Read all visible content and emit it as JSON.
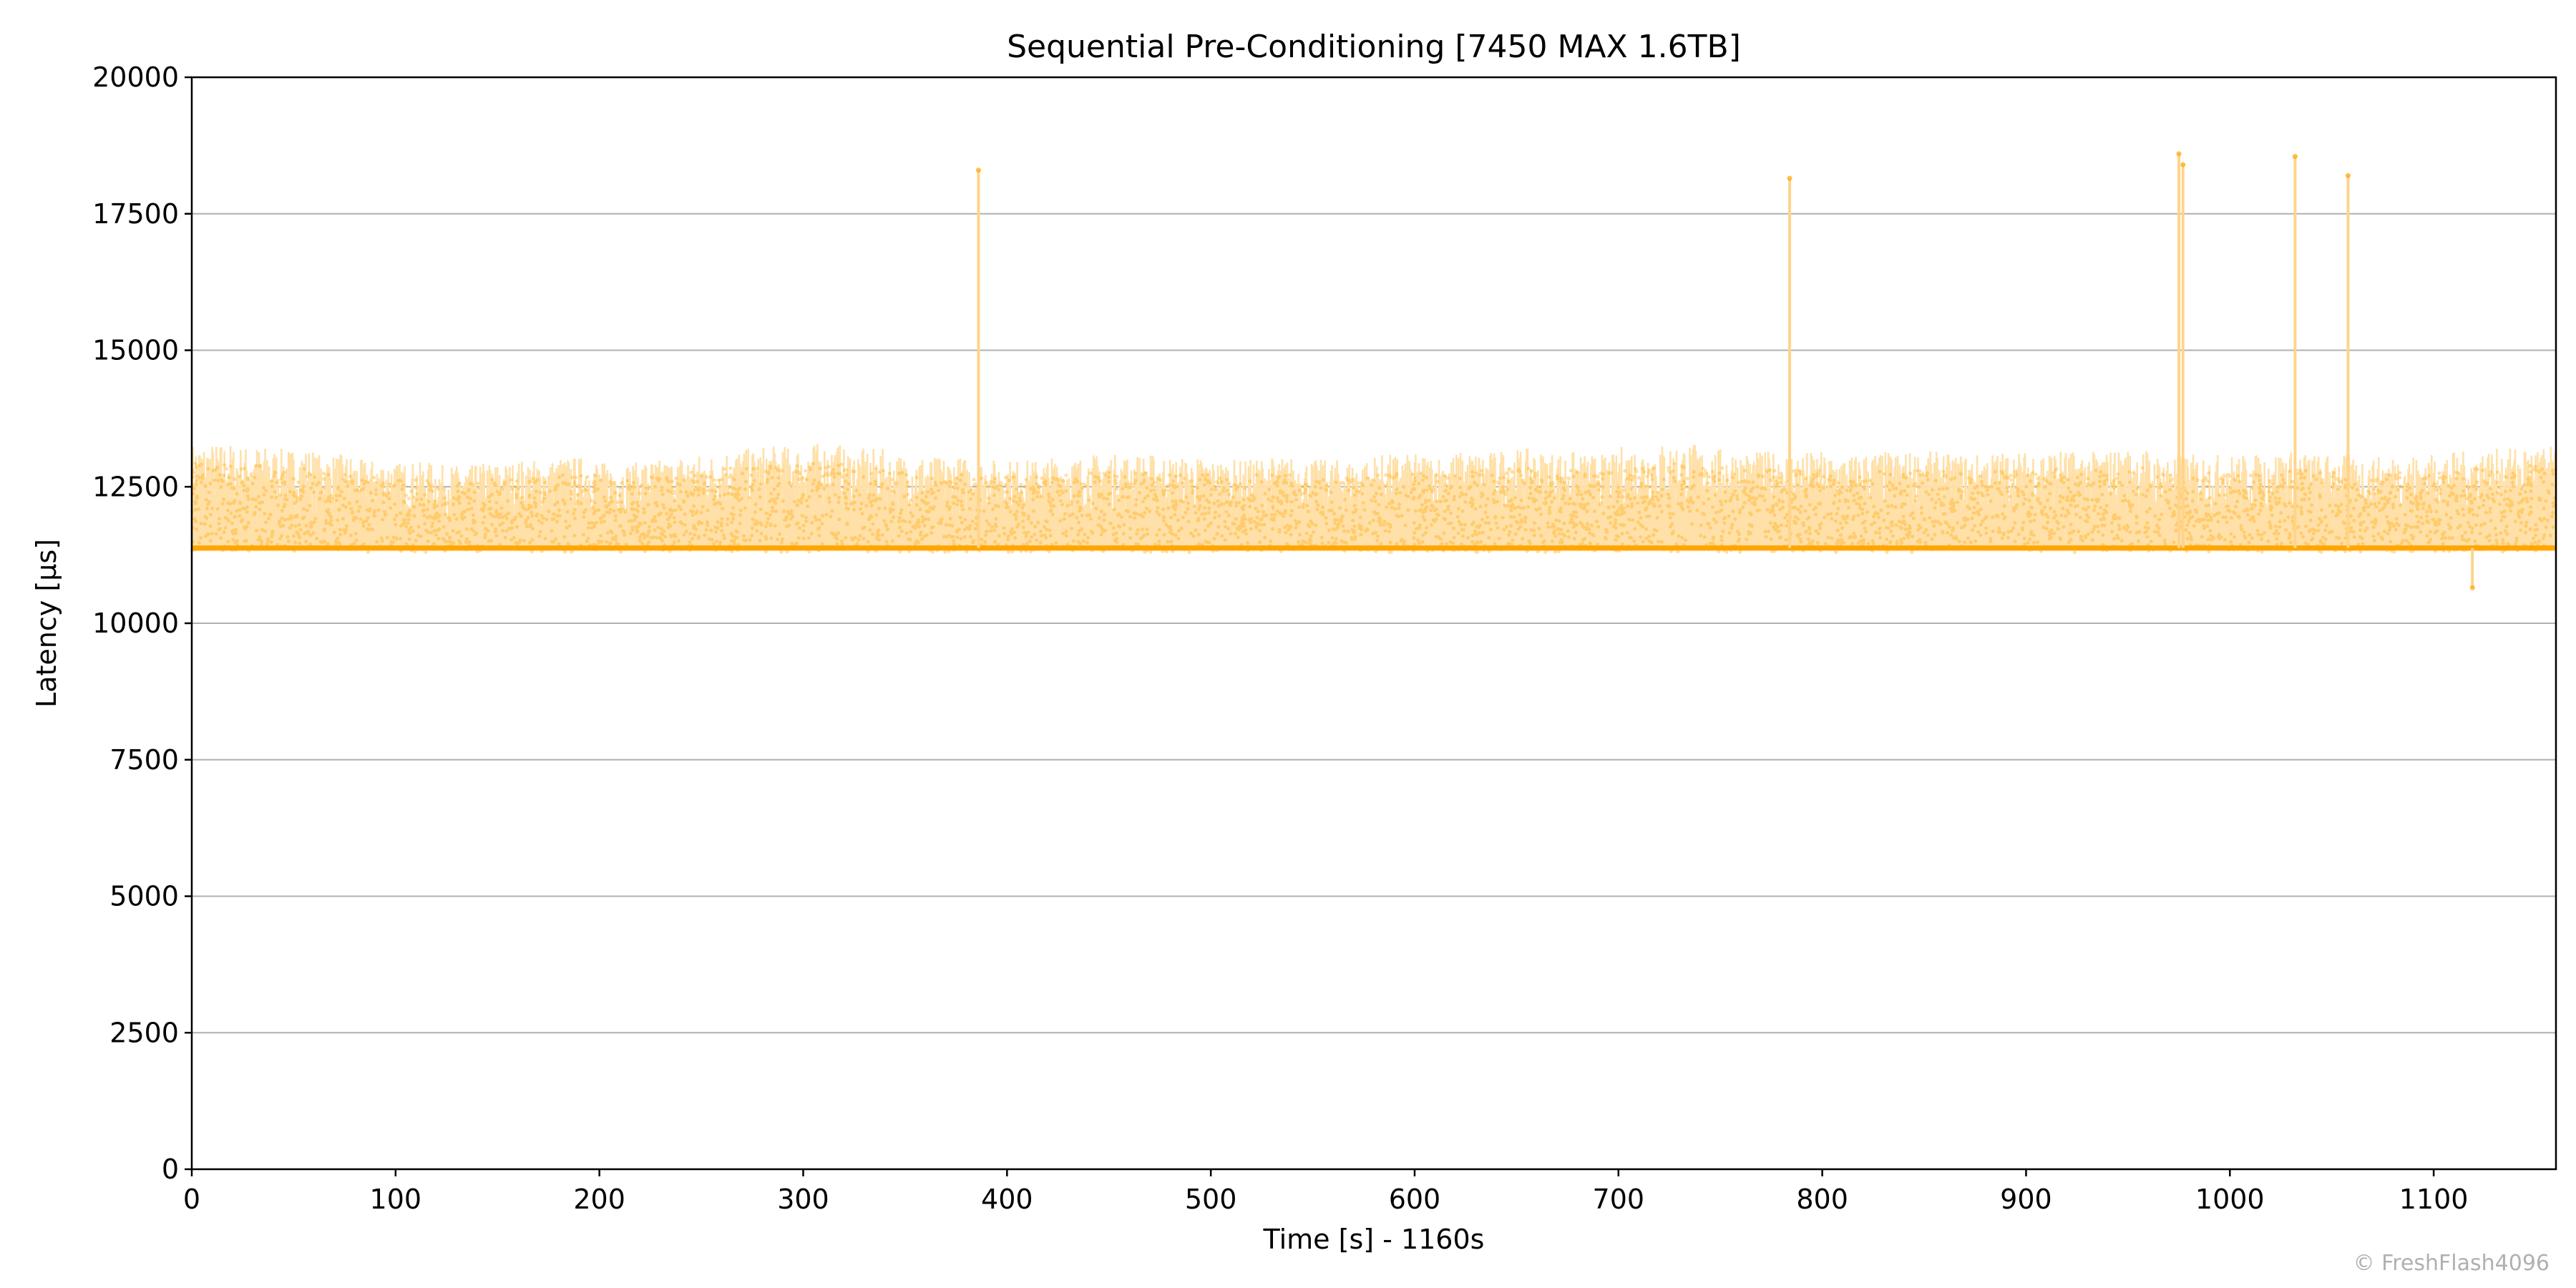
{
  "chart_data": {
    "type": "scatter",
    "title": "Sequential Pre-Conditioning [7450 MAX 1.6TB]",
    "xlabel": "Time [s] - 1160s",
    "ylabel": "Latency [µs]",
    "xlim": [
      0,
      1160
    ],
    "ylim": [
      0,
      20000
    ],
    "xticks": [
      0,
      100,
      200,
      300,
      400,
      500,
      600,
      700,
      800,
      900,
      1000,
      1100
    ],
    "yticks": [
      0,
      2500,
      5000,
      7500,
      10000,
      12500,
      15000,
      17500,
      20000
    ],
    "grid": "y",
    "color": "#FFA500",
    "fill_color": "#FFE0A8",
    "series": [
      {
        "name": "latency",
        "baseline_us": 11380,
        "typical_max_envelope_us": [
          13300,
          13250,
          13200,
          13100,
          13000,
          12950,
          12900,
          12950,
          13000,
          13050,
          12950,
          13000,
          13100,
          13200,
          13250,
          13300,
          13200,
          13100,
          13050,
          13000,
          13000,
          13050,
          13100,
          13100,
          13050,
          13000,
          13050,
          13000,
          13000,
          13100,
          13100,
          13150,
          13200,
          13150,
          13100,
          13250,
          13300,
          13200,
          13150,
          13150,
          13100,
          13150,
          13150,
          13100,
          13150,
          13200,
          13150,
          13200,
          13100,
          13100,
          13100,
          13150,
          13100,
          13050,
          13100,
          13150,
          13200,
          13250
        ],
        "envelope_step_s": 20,
        "spikes": [
          {
            "x": 386,
            "y": 18300
          },
          {
            "x": 784,
            "y": 18150
          },
          {
            "x": 975,
            "y": 18600
          },
          {
            "x": 977,
            "y": 18400
          },
          {
            "x": 1032,
            "y": 18550
          },
          {
            "x": 1058,
            "y": 18200
          },
          {
            "x": 1119,
            "y": 10650
          }
        ]
      }
    ]
  },
  "watermark": "© FreshFlash4096"
}
